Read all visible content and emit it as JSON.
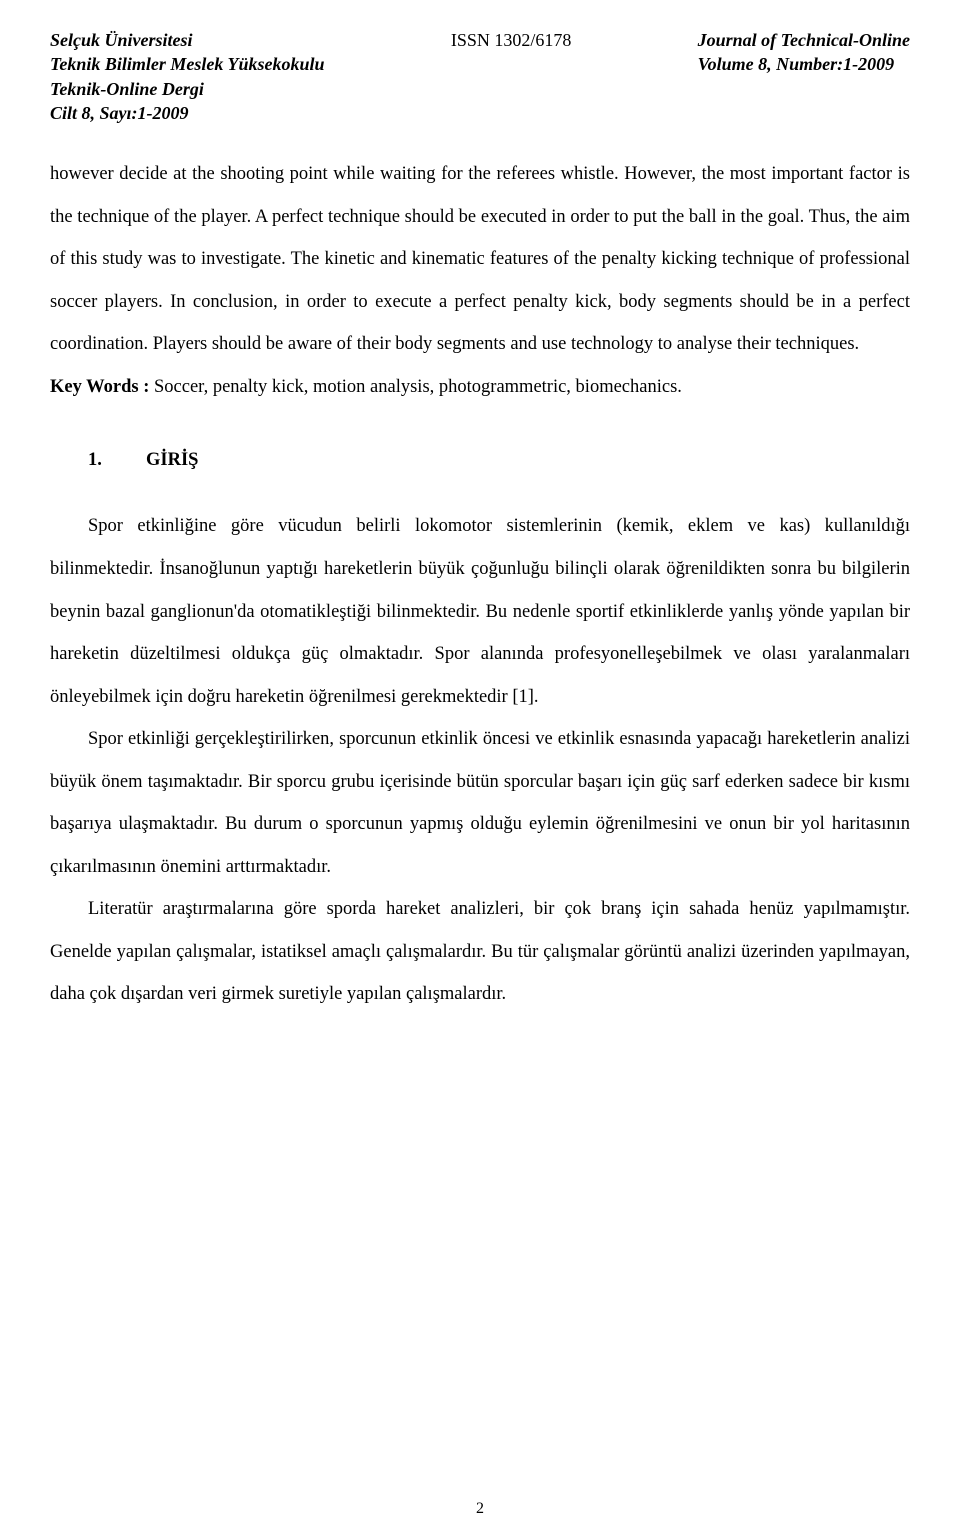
{
  "header": {
    "left": {
      "line1": "Selçuk Üniversitesi",
      "line2": "Teknik Bilimler Meslek Yüksekokulu",
      "line3": "Teknik-Online Dergi",
      "line4": "Cilt 8, Sayı:1-2009"
    },
    "center": {
      "issn": "ISSN 1302/6178"
    },
    "right": {
      "line1": "Journal of Technical-Online",
      "line2": "Volume 8, Number:1-2009"
    }
  },
  "abstract_continued": "however decide at the shooting point while waiting for the referees whistle. However, the most important factor is the technique of the player. A perfect technique should be executed in order to put the ball in the goal. Thus, the aim of this study was to investigate. The kinetic and kinematic features of the penalty kicking technique of professional soccer players. In conclusion, in order to execute a perfect penalty kick, body segments should be in a perfect coordination. Players should be aware of their body segments and use technology to analyse their techniques.",
  "keywords": {
    "label": "Key Words : ",
    "text": "Soccer, penalty kick, motion analysis, photogrammetric, biomechanics."
  },
  "section": {
    "number": "1.",
    "title": "GİRİŞ"
  },
  "paragraphs": {
    "p1": "Spor etkinliğine göre vücudun belirli lokomotor sistemlerinin (kemik, eklem ve kas) kullanıldığı bilinmektedir. İnsanoğlunun yaptığı hareketlerin büyük çoğunluğu bilinçli olarak öğrenildikten sonra bu bilgilerin beynin bazal ganglionun'da otomatikleştiği bilinmektedir. Bu nedenle sportif etkinliklerde yanlış yönde yapılan bir hareketin düzeltilmesi oldukça güç olmaktadır. Spor alanında profesyonelleşebilmek ve olası yaralanmaları önleyebilmek için doğru hareketin öğrenilmesi gerekmektedir [1].",
    "p2": "Spor etkinliği gerçekleştirilirken, sporcunun etkinlik öncesi ve etkinlik esnasında yapacağı hareketlerin analizi büyük önem taşımaktadır. Bir sporcu grubu içerisinde bütün sporcular başarı için güç sarf ederken sadece bir kısmı başarıya ulaşmaktadır. Bu durum o sporcunun yapmış olduğu eylemin öğrenilmesini ve onun bir yol haritasının çıkarılmasının önemini arttırmaktadır.",
    "p3": "Literatür araştırmalarına göre sporda hareket analizleri, bir çok branş için sahada henüz yapılmamıştır. Genelde yapılan çalışmalar, istatiksel amaçlı çalışmalardır. Bu tür çalışmalar görüntü analizi üzerinden yapılmayan, daha çok dışardan veri girmek suretiyle yapılan çalışmalardır."
  },
  "page_number": "2"
}
